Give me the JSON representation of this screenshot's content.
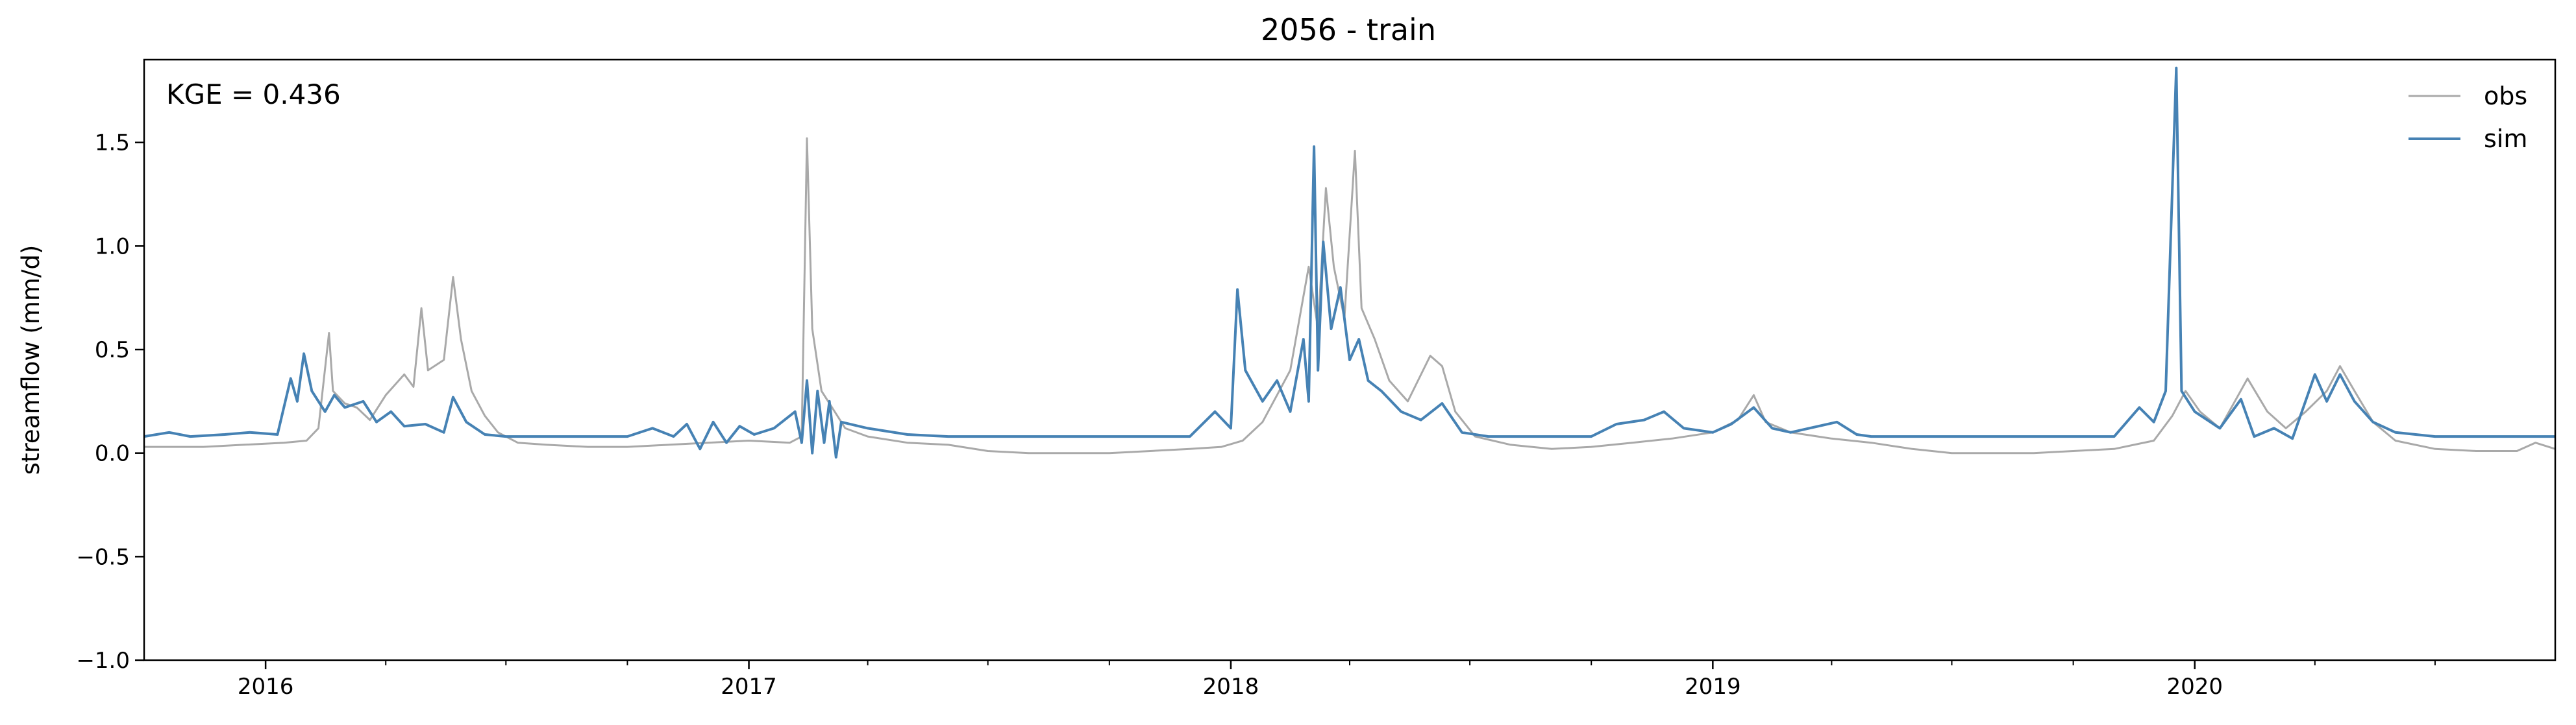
{
  "chart_data": {
    "type": "line",
    "title": "2056 - train",
    "annotation": "KGE = 0.436",
    "xlabel": "",
    "ylabel": "streamflow (mm/d)",
    "xlim": [
      "2015-10-01",
      "2020-09-30"
    ],
    "ylim": [
      -1.0,
      1.9
    ],
    "x_tick_labels": [
      "2016",
      "2017",
      "2018",
      "2019",
      "2020"
    ],
    "y_ticks": [
      -1.0,
      -0.5,
      0.0,
      0.5,
      1.0,
      1.5
    ],
    "y_tick_labels": [
      "−1.0",
      "−0.5",
      "0.0",
      "0.5",
      "1.0",
      "1.5"
    ],
    "legend_position": "top-right",
    "grid": false,
    "series": [
      {
        "name": "obs",
        "color": "#a9a9a9",
        "points": [
          [
            "2015-10-01",
            0.03
          ],
          [
            "2015-11-15",
            0.03
          ],
          [
            "2015-12-15",
            0.04
          ],
          [
            "2016-01-15",
            0.05
          ],
          [
            "2016-02-01",
            0.06
          ],
          [
            "2016-02-10",
            0.12
          ],
          [
            "2016-02-18",
            0.58
          ],
          [
            "2016-02-21",
            0.3
          ],
          [
            "2016-03-01",
            0.24
          ],
          [
            "2016-03-10",
            0.22
          ],
          [
            "2016-03-20",
            0.16
          ],
          [
            "2016-04-01",
            0.28
          ],
          [
            "2016-04-15",
            0.38
          ],
          [
            "2016-04-22",
            0.32
          ],
          [
            "2016-04-28",
            0.7
          ],
          [
            "2016-05-03",
            0.4
          ],
          [
            "2016-05-15",
            0.45
          ],
          [
            "2016-05-22",
            0.85
          ],
          [
            "2016-05-28",
            0.55
          ],
          [
            "2016-06-05",
            0.3
          ],
          [
            "2016-06-15",
            0.18
          ],
          [
            "2016-06-25",
            0.1
          ],
          [
            "2016-07-10",
            0.05
          ],
          [
            "2016-08-01",
            0.04
          ],
          [
            "2016-09-01",
            0.03
          ],
          [
            "2016-10-01",
            0.03
          ],
          [
            "2016-11-01",
            0.04
          ],
          [
            "2016-12-01",
            0.05
          ],
          [
            "2017-01-01",
            0.06
          ],
          [
            "2017-02-01",
            0.05
          ],
          [
            "2017-02-10",
            0.08
          ],
          [
            "2017-02-14",
            1.52
          ],
          [
            "2017-02-18",
            0.6
          ],
          [
            "2017-02-25",
            0.3
          ],
          [
            "2017-03-05",
            0.22
          ],
          [
            "2017-03-15",
            0.12
          ],
          [
            "2017-04-01",
            0.08
          ],
          [
            "2017-05-01",
            0.05
          ],
          [
            "2017-06-01",
            0.04
          ],
          [
            "2017-07-01",
            0.01
          ],
          [
            "2017-08-01",
            0.0
          ],
          [
            "2017-09-01",
            0.0
          ],
          [
            "2017-10-01",
            0.0
          ],
          [
            "2017-11-01",
            0.01
          ],
          [
            "2017-12-01",
            0.02
          ],
          [
            "2017-12-25",
            0.03
          ],
          [
            "2018-01-10",
            0.06
          ],
          [
            "2018-01-25",
            0.15
          ],
          [
            "2018-02-05",
            0.28
          ],
          [
            "2018-02-15",
            0.4
          ],
          [
            "2018-03-01",
            0.9
          ],
          [
            "2018-03-08",
            0.6
          ],
          [
            "2018-03-14",
            1.28
          ],
          [
            "2018-03-20",
            0.9
          ],
          [
            "2018-03-28",
            0.65
          ],
          [
            "2018-04-05",
            1.46
          ],
          [
            "2018-04-10",
            0.7
          ],
          [
            "2018-04-20",
            0.55
          ],
          [
            "2018-05-01",
            0.35
          ],
          [
            "2018-05-15",
            0.25
          ],
          [
            "2018-06-01",
            0.47
          ],
          [
            "2018-06-10",
            0.42
          ],
          [
            "2018-06-20",
            0.2
          ],
          [
            "2018-07-05",
            0.08
          ],
          [
            "2018-08-01",
            0.04
          ],
          [
            "2018-09-01",
            0.02
          ],
          [
            "2018-10-01",
            0.03
          ],
          [
            "2018-11-01",
            0.05
          ],
          [
            "2018-12-01",
            0.07
          ],
          [
            "2019-01-01",
            0.1
          ],
          [
            "2019-01-20",
            0.16
          ],
          [
            "2019-02-01",
            0.28
          ],
          [
            "2019-02-10",
            0.15
          ],
          [
            "2019-03-01",
            0.1
          ],
          [
            "2019-04-01",
            0.07
          ],
          [
            "2019-05-01",
            0.05
          ],
          [
            "2019-06-01",
            0.02
          ],
          [
            "2019-07-01",
            0.0
          ],
          [
            "2019-08-01",
            0.0
          ],
          [
            "2019-09-01",
            0.0
          ],
          [
            "2019-10-01",
            0.01
          ],
          [
            "2019-11-01",
            0.02
          ],
          [
            "2019-12-01",
            0.06
          ],
          [
            "2019-12-15",
            0.18
          ],
          [
            "2019-12-25",
            0.3
          ],
          [
            "2020-01-05",
            0.2
          ],
          [
            "2020-01-20",
            0.12
          ],
          [
            "2020-02-10",
            0.36
          ],
          [
            "2020-02-25",
            0.2
          ],
          [
            "2020-03-10",
            0.12
          ],
          [
            "2020-03-25",
            0.2
          ],
          [
            "2020-04-10",
            0.3
          ],
          [
            "2020-04-20",
            0.42
          ],
          [
            "2020-05-01",
            0.3
          ],
          [
            "2020-05-15",
            0.15
          ],
          [
            "2020-06-01",
            0.06
          ],
          [
            "2020-07-01",
            0.02
          ],
          [
            "2020-08-01",
            0.01
          ],
          [
            "2020-09-01",
            0.01
          ],
          [
            "2020-09-15",
            0.05
          ],
          [
            "2020-09-30",
            0.02
          ]
        ]
      },
      {
        "name": "sim",
        "color": "#4682b4",
        "points": [
          [
            "2015-10-01",
            0.08
          ],
          [
            "2015-10-20",
            0.1
          ],
          [
            "2015-11-05",
            0.08
          ],
          [
            "2015-12-01",
            0.09
          ],
          [
            "2015-12-20",
            0.1
          ],
          [
            "2016-01-10",
            0.09
          ],
          [
            "2016-01-20",
            0.36
          ],
          [
            "2016-01-25",
            0.25
          ],
          [
            "2016-01-30",
            0.48
          ],
          [
            "2016-02-05",
            0.3
          ],
          [
            "2016-02-15",
            0.2
          ],
          [
            "2016-02-22",
            0.28
          ],
          [
            "2016-03-01",
            0.22
          ],
          [
            "2016-03-15",
            0.25
          ],
          [
            "2016-03-25",
            0.15
          ],
          [
            "2016-04-05",
            0.2
          ],
          [
            "2016-04-15",
            0.13
          ],
          [
            "2016-05-01",
            0.14
          ],
          [
            "2016-05-15",
            0.1
          ],
          [
            "2016-05-22",
            0.27
          ],
          [
            "2016-06-01",
            0.15
          ],
          [
            "2016-06-15",
            0.09
          ],
          [
            "2016-07-01",
            0.08
          ],
          [
            "2016-09-01",
            0.08
          ],
          [
            "2016-10-01",
            0.08
          ],
          [
            "2016-10-20",
            0.12
          ],
          [
            "2016-11-05",
            0.08
          ],
          [
            "2016-11-15",
            0.14
          ],
          [
            "2016-11-25",
            0.02
          ],
          [
            "2016-12-05",
            0.15
          ],
          [
            "2016-12-15",
            0.05
          ],
          [
            "2016-12-25",
            0.13
          ],
          [
            "2017-01-05",
            0.09
          ],
          [
            "2017-01-20",
            0.12
          ],
          [
            "2017-02-05",
            0.2
          ],
          [
            "2017-02-10",
            0.05
          ],
          [
            "2017-02-14",
            0.35
          ],
          [
            "2017-02-18",
            0.0
          ],
          [
            "2017-02-22",
            0.3
          ],
          [
            "2017-02-27",
            0.05
          ],
          [
            "2017-03-03",
            0.25
          ],
          [
            "2017-03-08",
            -0.02
          ],
          [
            "2017-03-12",
            0.15
          ],
          [
            "2017-04-01",
            0.12
          ],
          [
            "2017-05-01",
            0.09
          ],
          [
            "2017-06-01",
            0.08
          ],
          [
            "2017-09-01",
            0.08
          ],
          [
            "2017-12-01",
            0.08
          ],
          [
            "2017-12-20",
            0.2
          ],
          [
            "2018-01-01",
            0.12
          ],
          [
            "2018-01-06",
            0.79
          ],
          [
            "2018-01-12",
            0.4
          ],
          [
            "2018-01-25",
            0.25
          ],
          [
            "2018-02-05",
            0.35
          ],
          [
            "2018-02-15",
            0.2
          ],
          [
            "2018-02-25",
            0.55
          ],
          [
            "2018-03-01",
            0.25
          ],
          [
            "2018-03-05",
            1.48
          ],
          [
            "2018-03-08",
            0.4
          ],
          [
            "2018-03-12",
            1.02
          ],
          [
            "2018-03-18",
            0.6
          ],
          [
            "2018-03-25",
            0.8
          ],
          [
            "2018-04-01",
            0.45
          ],
          [
            "2018-04-08",
            0.55
          ],
          [
            "2018-04-15",
            0.35
          ],
          [
            "2018-04-25",
            0.3
          ],
          [
            "2018-05-10",
            0.2
          ],
          [
            "2018-05-25",
            0.16
          ],
          [
            "2018-06-10",
            0.24
          ],
          [
            "2018-06-25",
            0.1
          ],
          [
            "2018-07-15",
            0.08
          ],
          [
            "2018-09-01",
            0.08
          ],
          [
            "2018-10-01",
            0.08
          ],
          [
            "2018-10-20",
            0.14
          ],
          [
            "2018-11-10",
            0.16
          ],
          [
            "2018-11-25",
            0.2
          ],
          [
            "2018-12-10",
            0.12
          ],
          [
            "2019-01-01",
            0.1
          ],
          [
            "2019-01-15",
            0.14
          ],
          [
            "2019-02-01",
            0.22
          ],
          [
            "2019-02-15",
            0.12
          ],
          [
            "2019-03-01",
            0.1
          ],
          [
            "2019-04-05",
            0.15
          ],
          [
            "2019-04-20",
            0.09
          ],
          [
            "2019-05-01",
            0.08
          ],
          [
            "2019-09-01",
            0.08
          ],
          [
            "2019-11-01",
            0.08
          ],
          [
            "2019-11-20",
            0.22
          ],
          [
            "2019-12-01",
            0.15
          ],
          [
            "2019-12-10",
            0.3
          ],
          [
            "2019-12-18",
            1.86
          ],
          [
            "2019-12-22",
            0.3
          ],
          [
            "2020-01-01",
            0.2
          ],
          [
            "2020-01-20",
            0.12
          ],
          [
            "2020-02-05",
            0.26
          ],
          [
            "2020-02-15",
            0.08
          ],
          [
            "2020-03-01",
            0.12
          ],
          [
            "2020-03-15",
            0.07
          ],
          [
            "2020-04-01",
            0.38
          ],
          [
            "2020-04-10",
            0.25
          ],
          [
            "2020-04-20",
            0.38
          ],
          [
            "2020-05-01",
            0.25
          ],
          [
            "2020-05-15",
            0.15
          ],
          [
            "2020-06-01",
            0.1
          ],
          [
            "2020-07-01",
            0.08
          ],
          [
            "2020-09-30",
            0.08
          ]
        ]
      }
    ]
  }
}
